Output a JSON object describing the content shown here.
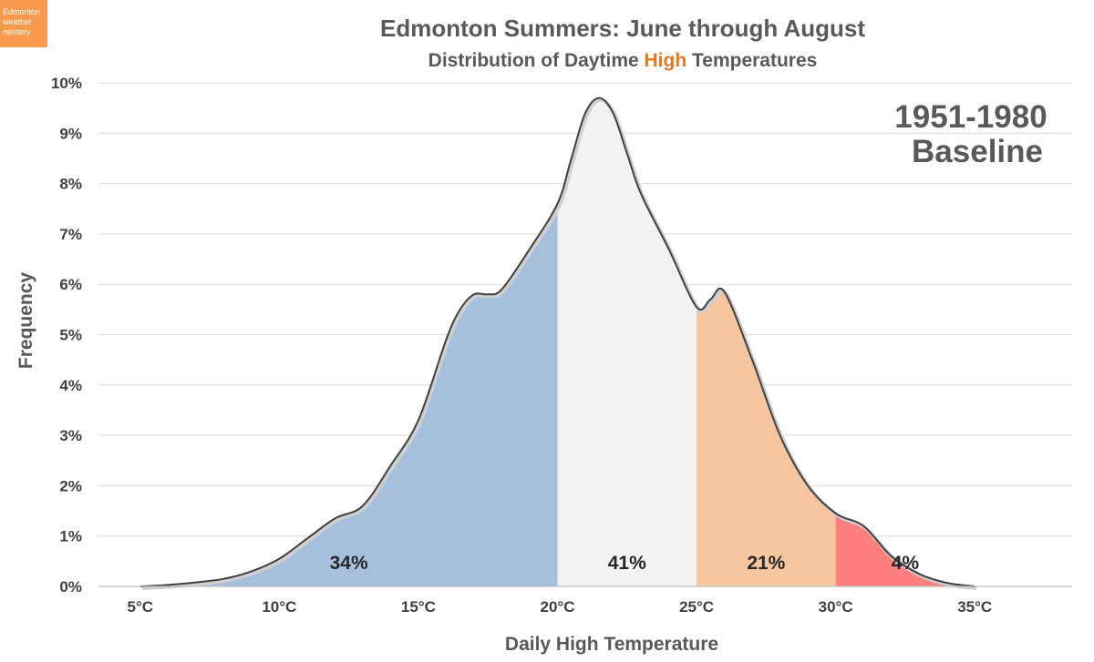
{
  "logo": {
    "lines": [
      "Edmonton",
      "weather",
      "nerdery"
    ]
  },
  "chart_data": {
    "type": "area",
    "title": "Edmonton Summers: June through August",
    "subtitle": {
      "before": "Distribution of Daytime ",
      "highlight": "High",
      "after": " Temperatures",
      "highlight_color": "#e87722"
    },
    "annotation": [
      "1951-1980",
      "Baseline"
    ],
    "xlabel": "Daily High Temperature",
    "ylabel": "Frequency",
    "xlim": [
      3.5,
      38.5
    ],
    "ylim": [
      0,
      10
    ],
    "x_ticks": [
      5,
      10,
      15,
      20,
      25,
      30,
      35
    ],
    "x_tick_labels": [
      "5°C",
      "10°C",
      "15°C",
      "20°C",
      "25°C",
      "30°C",
      "35°C"
    ],
    "y_ticks": [
      0,
      1,
      2,
      3,
      4,
      5,
      6,
      7,
      8,
      9,
      10
    ],
    "y_tick_labels": [
      "0%",
      "1%",
      "2%",
      "3%",
      "4%",
      "5%",
      "6%",
      "7%",
      "8%",
      "9%",
      "10%"
    ],
    "grid": true,
    "x": [
      5,
      6,
      7,
      8,
      9,
      10,
      11,
      12,
      13,
      14,
      15,
      16,
      16.5,
      17,
      17.5,
      18,
      19,
      20,
      20.5,
      21,
      21.5,
      22,
      22.5,
      23,
      24,
      25,
      25.5,
      26,
      27,
      28,
      29,
      30,
      31,
      32,
      33,
      34,
      35
    ],
    "y": [
      0,
      0.03,
      0.08,
      0.15,
      0.3,
      0.55,
      0.95,
      1.35,
      1.6,
      2.4,
      3.3,
      4.9,
      5.5,
      5.8,
      5.8,
      5.9,
      6.7,
      7.6,
      8.5,
      9.4,
      9.7,
      9.4,
      8.6,
      7.8,
      6.7,
      5.55,
      5.7,
      5.85,
      4.5,
      3.0,
      2.0,
      1.45,
      1.2,
      0.6,
      0.25,
      0.07,
      0
    ],
    "bands": [
      {
        "range": [
          5,
          20
        ],
        "label": "34%",
        "color": "#a5bfdd"
      },
      {
        "range": [
          20,
          25
        ],
        "label": "41%",
        "color": "#f2f2f2"
      },
      {
        "range": [
          25,
          30
        ],
        "label": "21%",
        "color": "#f7c59e"
      },
      {
        "range": [
          30,
          35
        ],
        "label": "4%",
        "color": "#ff7f7f"
      }
    ],
    "curve_color": "#404040"
  }
}
